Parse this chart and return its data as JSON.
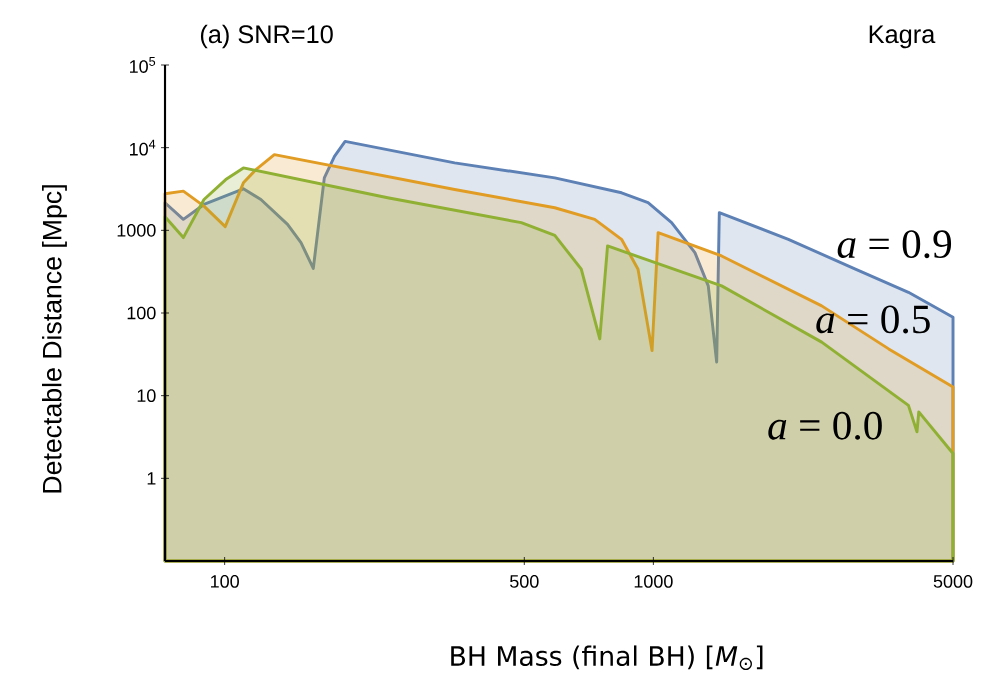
{
  "chart_data": {
    "type": "area",
    "title": "(a) SNR=10",
    "annotations": [
      "Kagra"
    ],
    "xlabel": "BH Mass (final BH)  [*M*$_{⊙}$]",
    "ylabel": "Detectable Distance [Mpc]",
    "log": "xy",
    "xlim": [
      72.6,
      5000
    ],
    "ylim": [
      0.1,
      100000
    ],
    "xticks": [
      100,
      500,
      1000,
      5000
    ],
    "yticks": [
      {
        "value": 100000,
        "label": "10$^{5}$"
      },
      {
        "value": 10000,
        "label": "10$^{4}$"
      },
      1000,
      100,
      10,
      1
    ],
    "grid": false,
    "legend": false,
    "series": [
      {
        "name": "*a* = 0.9",
        "color": "#5e81b5",
        "x": [
          72.6,
          80.1,
          89.5,
          110.6,
          121.5,
          140.2,
          150.7,
          161,
          170.8,
          180.4,
          191,
          344,
          589,
          843,
          972,
          1103,
          1250,
          1343,
          1405,
          1425,
          2065,
          2960,
          3936,
          5000
        ],
        "values": [
          2158,
          1358,
          2056,
          3177,
          2362,
          1181,
          711,
          346,
          4315,
          7852,
          11900,
          6545,
          4315,
          2845,
          2158,
          1239,
          538,
          213,
          25.5,
          1634,
          779,
          339,
          178,
          89
        ]
      },
      {
        "name": "*a* = 0.5",
        "color": "#e19c24",
        "x": [
          72.6,
          80.1,
          89.5,
          100.3,
          110.6,
          118.3,
          130.6,
          344,
          589,
          730,
          843,
          921,
          993,
          1026,
          1443,
          2470,
          3540,
          5000
        ],
        "values": [
          2768,
          2980,
          1963,
          1109,
          3755,
          5430,
          8240,
          3120,
          1876,
          1358,
          779,
          339,
          35.1,
          938,
          490,
          122,
          36.8,
          12.7
        ]
      },
      {
        "name": "*a* = 0.0",
        "color": "#8fb032",
        "x": [
          72.6,
          80.1,
          89.5,
          100.6,
          110.6,
          240,
          492,
          589,
          679,
          750,
          782,
          1443,
          2470,
          3936,
          4120,
          4160,
          5000
        ],
        "values": [
          1463,
          817,
          2362,
          4115,
          5690,
          2477,
          1239,
          871,
          339,
          48.6,
          647,
          213,
          44.4,
          7.64,
          3.65,
          6.37,
          2.0
        ]
      }
    ]
  }
}
